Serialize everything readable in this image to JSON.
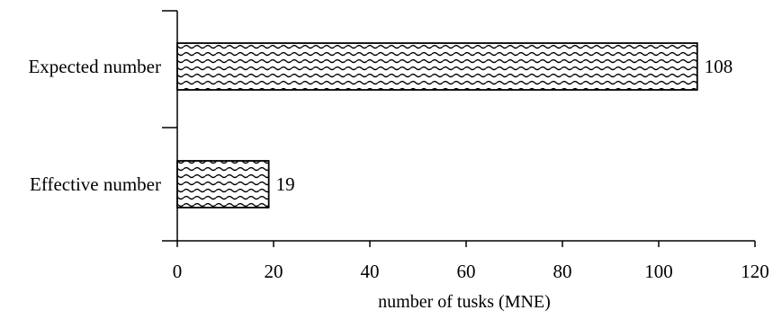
{
  "chart_data": {
    "type": "bar",
    "orientation": "horizontal",
    "categories": [
      "Expected number",
      "Effective number"
    ],
    "values": [
      108,
      19
    ],
    "data_labels": [
      "108",
      "19"
    ],
    "xlabel": "number of tusks (MNE)",
    "ylabel": "",
    "title": "",
    "xlim": [
      0,
      120
    ],
    "x_ticks": [
      0,
      20,
      40,
      60,
      80,
      100,
      120
    ],
    "grid": false,
    "legend": "none",
    "bar_fill": "wavy hatch pattern",
    "colors": {
      "bar_stroke": "#000000",
      "hatch": "#000000",
      "background": "#ffffff"
    }
  }
}
